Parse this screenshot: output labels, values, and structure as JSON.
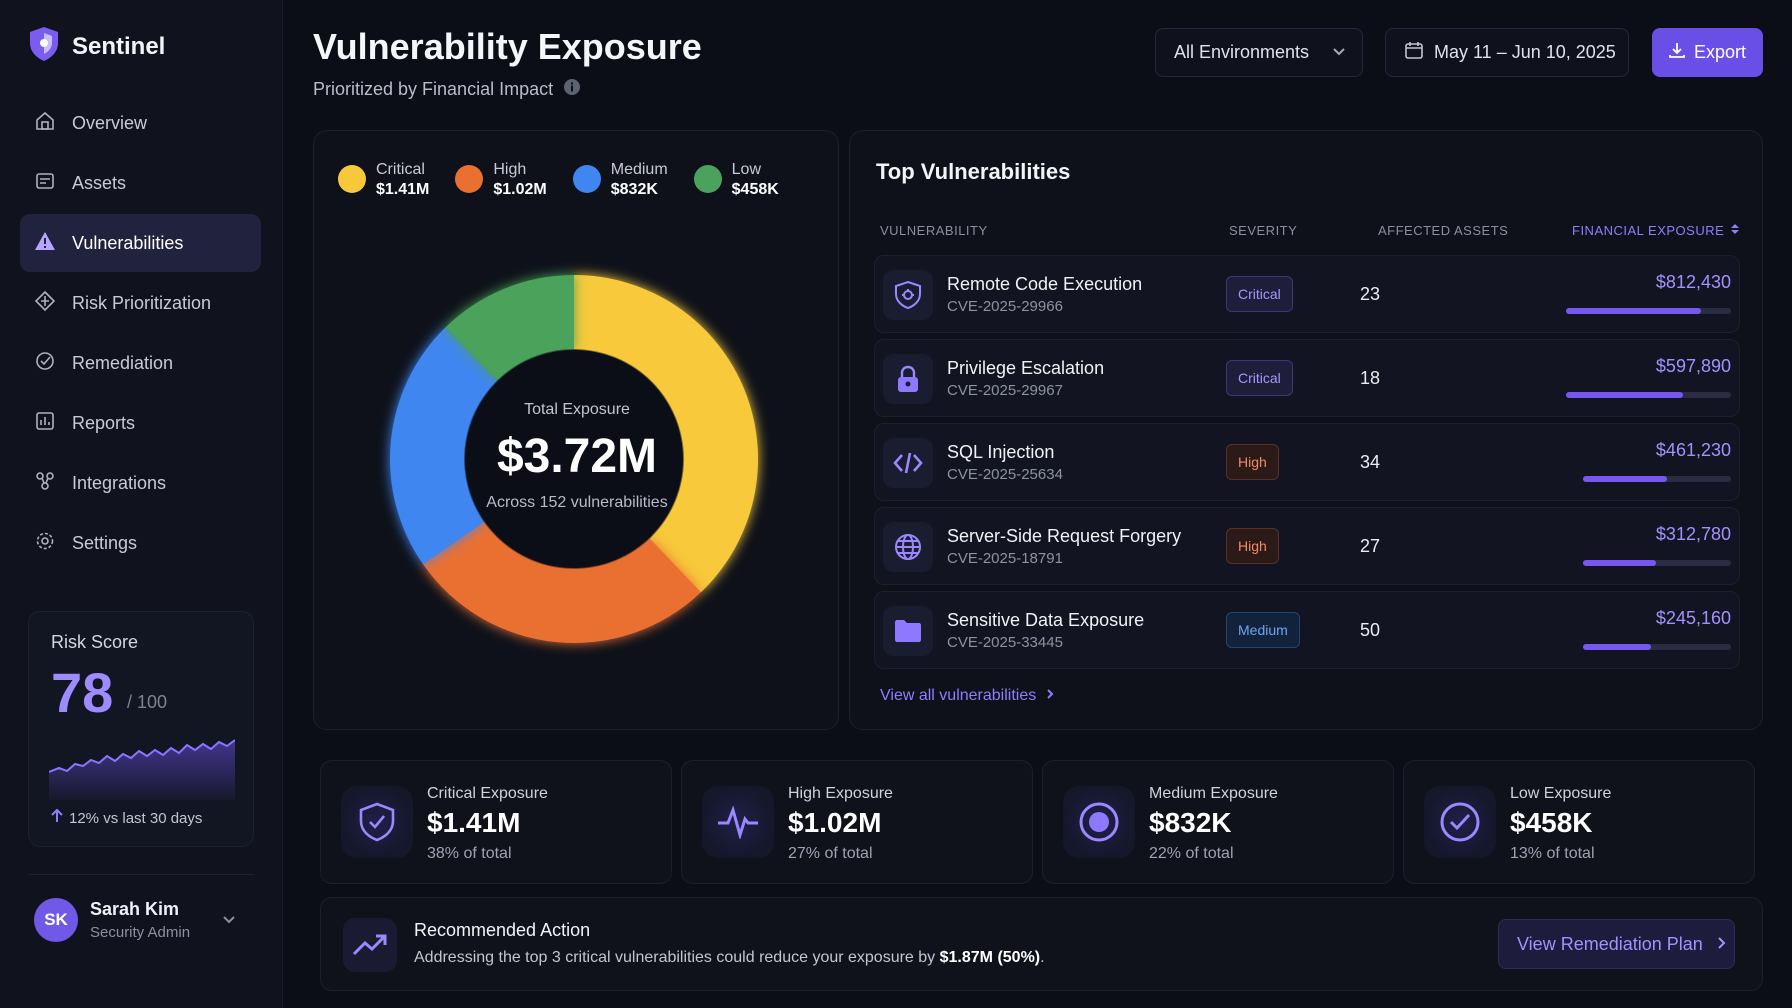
{
  "brand": {
    "name": "Sentinel"
  },
  "sidebar": {
    "items": [
      {
        "label": "Overview"
      },
      {
        "label": "Assets"
      },
      {
        "label": "Vulnerabilities"
      },
      {
        "label": "Risk Prioritization"
      },
      {
        "label": "Remediation"
      },
      {
        "label": "Reports"
      },
      {
        "label": "Integrations"
      },
      {
        "label": "Settings"
      }
    ],
    "active_index": 2
  },
  "risk": {
    "title": "Risk Score",
    "score": "78",
    "max": "/ 100",
    "trend": "12% vs last 30 days"
  },
  "user": {
    "initials": "SK",
    "name": "Sarah Kim",
    "role": "Security Admin"
  },
  "header": {
    "title": "Vulnerability Exposure",
    "subtitle": "Prioritized by Financial Impact",
    "env_select": "All Environments",
    "date_range": "May 11 – Jun 10, 2025",
    "export_label": "Export"
  },
  "colors": {
    "accent": "#6a4fe6",
    "critical": "#f7c93a",
    "high": "#ea7032",
    "medium": "#3f86f0",
    "low": "#4ba25a"
  },
  "chart_data": {
    "type": "pie",
    "donut": true,
    "categories": [
      "Critical",
      "High",
      "Medium",
      "Low"
    ],
    "values": [
      1.41,
      1.02,
      0.832,
      0.458
    ],
    "value_labels": [
      "$1.41M",
      "$1.02M",
      "$832K",
      "$458K"
    ],
    "unit": "$M",
    "center_label": "Total Exposure",
    "center_value": "$3.72M",
    "center_sub": "Across 152 vulnerabilities"
  },
  "table": {
    "title": "Top Vulnerabilities",
    "columns": [
      "VULNERABILITY",
      "SEVERITY",
      "AFFECTED ASSETS",
      "FINANCIAL EXPOSURE"
    ],
    "rows": [
      {
        "icon": "shield-bug-icon",
        "name": "Remote Code Execution",
        "cve": "CVE-2025-29966",
        "severity": "Critical",
        "assets": "23",
        "exposure": "$812,430",
        "fill": 0.82
      },
      {
        "icon": "lock-icon",
        "name": "Privilege Escalation",
        "cve": "CVE-2025-29967",
        "severity": "Critical",
        "assets": "18",
        "exposure": "$597,890",
        "fill": 0.71
      },
      {
        "icon": "code-icon",
        "name": "SQL Injection",
        "cve": "CVE-2025-25634",
        "severity": "High",
        "assets": "34",
        "exposure": "$461,230",
        "fill": 0.57
      },
      {
        "icon": "globe-icon",
        "name": "Server-Side Request Forgery",
        "cve": "CVE-2025-18791",
        "severity": "High",
        "assets": "27",
        "exposure": "$312,780",
        "fill": 0.49
      },
      {
        "icon": "folder-icon",
        "name": "Sensitive Data Exposure",
        "cve": "CVE-2025-33445",
        "severity": "Medium",
        "assets": "50",
        "exposure": "$245,160",
        "fill": 0.46
      }
    ],
    "view_all": "View all vulnerabilities"
  },
  "kpis": [
    {
      "icon": "shield-icon",
      "label": "Critical Exposure",
      "value": "$1.41M",
      "sub": "38% of total"
    },
    {
      "icon": "pulse-icon",
      "label": "High Exposure",
      "value": "$1.02M",
      "sub": "27% of total"
    },
    {
      "icon": "target-icon",
      "label": "Medium Exposure",
      "value": "$832K",
      "sub": "22% of total"
    },
    {
      "icon": "check-circle-icon",
      "label": "Low Exposure",
      "value": "$458K",
      "sub": "13% of total"
    }
  ],
  "recommendation": {
    "title": "Recommended Action",
    "text_prefix": "Addressing the top 3 critical vulnerabilities could reduce your exposure by ",
    "text_bold": "$1.87M (50%)",
    "text_suffix": ".",
    "button": "View Remediation Plan"
  }
}
